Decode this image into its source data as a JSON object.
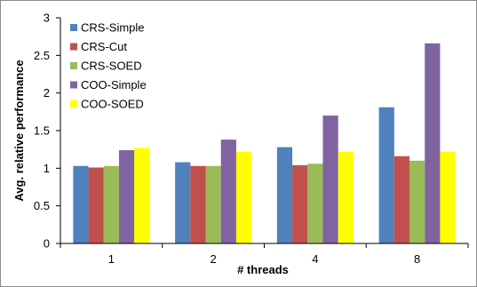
{
  "chart_data": {
    "type": "bar",
    "title": "",
    "xlabel": "# threads",
    "ylabel": "Avg. relative performance",
    "categories": [
      "1",
      "2",
      "4",
      "8"
    ],
    "ylim": [
      0,
      3
    ],
    "yticks": [
      "0",
      "0.5",
      "1",
      "1.5",
      "2",
      "2.5",
      "3"
    ],
    "grid": false,
    "legend_position": "top-left",
    "series": [
      {
        "name": "CRS-Simple",
        "color": "#4f81bd",
        "values": [
          1.03,
          1.08,
          1.28,
          1.81
        ]
      },
      {
        "name": "CRS-Cut",
        "color": "#c0504d",
        "values": [
          1.01,
          1.03,
          1.04,
          1.16
        ]
      },
      {
        "name": "CRS-SOED",
        "color": "#9bbb59",
        "values": [
          1.03,
          1.03,
          1.06,
          1.1
        ]
      },
      {
        "name": "COO-Simple",
        "color": "#8064a2",
        "values": [
          1.24,
          1.38,
          1.7,
          2.66
        ]
      },
      {
        "name": "COO-SOED",
        "color": "#ffff00",
        "values": [
          1.27,
          1.22,
          1.22,
          1.22
        ]
      }
    ]
  }
}
